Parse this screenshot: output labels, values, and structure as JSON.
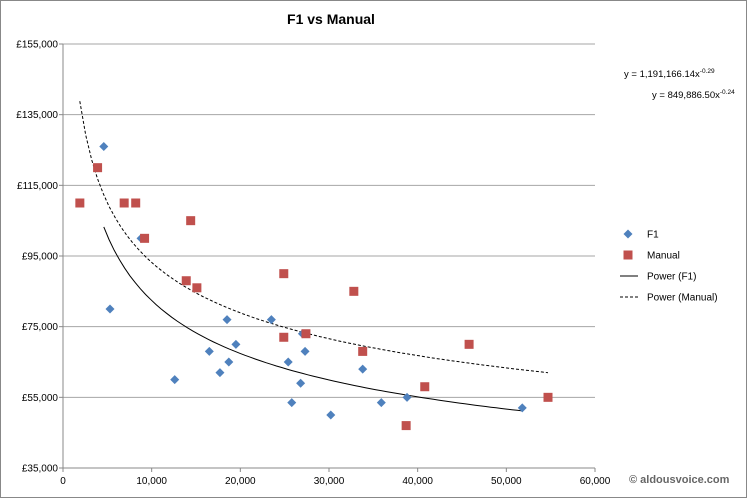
{
  "chart_data": {
    "type": "scatter",
    "title": "F1 vs Manual",
    "xlabel": "",
    "ylabel": "",
    "xlim": [
      0,
      60000
    ],
    "ylim": [
      35000,
      155000
    ],
    "x_ticks": [
      "0",
      "10,000",
      "20,000",
      "30,000",
      "40,000",
      "50,000",
      "60,000"
    ],
    "y_ticks": [
      "£35,000",
      "£55,000",
      "£75,000",
      "£95,000",
      "£115,000",
      "£135,000",
      "£155,000"
    ],
    "grid": "horizontal",
    "legend_position": "right",
    "series": [
      {
        "name": "F1",
        "marker": "diamond",
        "color": "#4F81BD",
        "points": [
          [
            4600,
            126000
          ],
          [
            5300,
            80000
          ],
          [
            8800,
            100000
          ],
          [
            12600,
            60000
          ],
          [
            16500,
            68000
          ],
          [
            17700,
            62000
          ],
          [
            18500,
            77000
          ],
          [
            18700,
            65000
          ],
          [
            19500,
            70000
          ],
          [
            23500,
            77000
          ],
          [
            25400,
            65000
          ],
          [
            25800,
            53500
          ],
          [
            26800,
            59000
          ],
          [
            27000,
            73000
          ],
          [
            27300,
            68000
          ],
          [
            30200,
            50000
          ],
          [
            33800,
            63000
          ],
          [
            35900,
            53500
          ],
          [
            38800,
            55000
          ],
          [
            51800,
            52000
          ]
        ]
      },
      {
        "name": "Manual",
        "marker": "square",
        "color": "#C0504D",
        "points": [
          [
            1900,
            110000
          ],
          [
            3900,
            120000
          ],
          [
            6900,
            110000
          ],
          [
            8200,
            110000
          ],
          [
            9200,
            100000
          ],
          [
            14400,
            105000
          ],
          [
            13900,
            88000
          ],
          [
            15100,
            86000
          ],
          [
            24900,
            90000
          ],
          [
            24900,
            72000
          ],
          [
            27400,
            73000
          ],
          [
            32800,
            85000
          ],
          [
            33800,
            68000
          ],
          [
            38700,
            47000
          ],
          [
            40800,
            58000
          ],
          [
            45800,
            70000
          ],
          [
            54700,
            55000
          ]
        ]
      }
    ],
    "trendlines": [
      {
        "name": "Power (F1)",
        "style": "solid",
        "color": "#000000",
        "a": 1191166.14,
        "b": -0.29,
        "x_range": [
          4600,
          51800
        ],
        "equation": "y = 1,191,166.14x",
        "exponent": "-0.29"
      },
      {
        "name": "Power (Manual)",
        "style": "dashed",
        "color": "#000000",
        "a": 849886.5,
        "b": -0.24,
        "x_range": [
          1900,
          54700
        ],
        "equation": "y = 849,886.50x",
        "exponent": "-0.24"
      }
    ]
  },
  "copyright": "© aldousvoice.com"
}
